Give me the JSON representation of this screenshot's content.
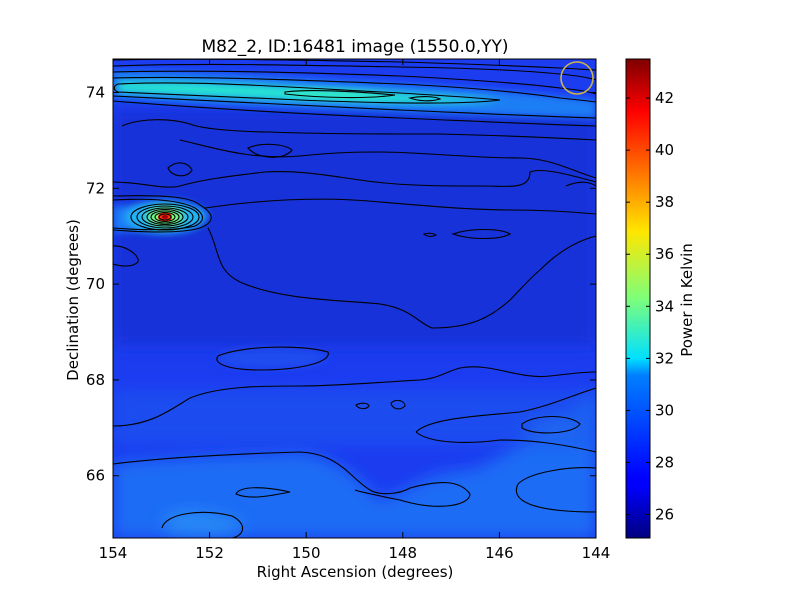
{
  "chart_data": {
    "type": "heatmap",
    "title": "M82_2, ID:16481 image (1550.0,YY)",
    "xlabel": "Right Ascension (degrees)",
    "ylabel": "Declination (degrees)",
    "xlim": [
      154,
      144
    ],
    "ylim": [
      64.7,
      74.7
    ],
    "xticks": [
      154,
      152,
      150,
      148,
      146,
      144
    ],
    "yticks": [
      66,
      68,
      70,
      72,
      74
    ],
    "colorbar": {
      "label": "Power in Kelvin",
      "range": [
        25.1,
        43.5
      ],
      "ticks": [
        26,
        28,
        30,
        32,
        34,
        36,
        38,
        40,
        42
      ],
      "colormap": "jet"
    },
    "grid": false,
    "beam_marker": {
      "ra": 144.4,
      "dec": 74.3,
      "color": "#c8b44a"
    },
    "sources": [
      {
        "ra": 152.9,
        "dec": 71.4,
        "peak": 43.3
      },
      {
        "ra": 147.6,
        "dec": 71.1,
        "peak": 28.0
      }
    ],
    "features": [
      {
        "kind": "band",
        "dec": 74.05,
        "ra_start": 154,
        "ra_end": 145.5,
        "value": 32.5
      },
      {
        "kind": "band",
        "dec": 71.4,
        "ra_start": 154,
        "ra_end": 151.5,
        "value": 29.0
      },
      {
        "kind": "region",
        "ra_center": 149.9,
        "dec_center": 65.6,
        "value": 29.5
      },
      {
        "kind": "region",
        "ra_center": 145.3,
        "dec_center": 67.0,
        "value": 29.8
      },
      {
        "kind": "region",
        "ra_center": 150.8,
        "dec_center": 68.5,
        "value": 27.8
      }
    ],
    "background_value": 27.0
  }
}
